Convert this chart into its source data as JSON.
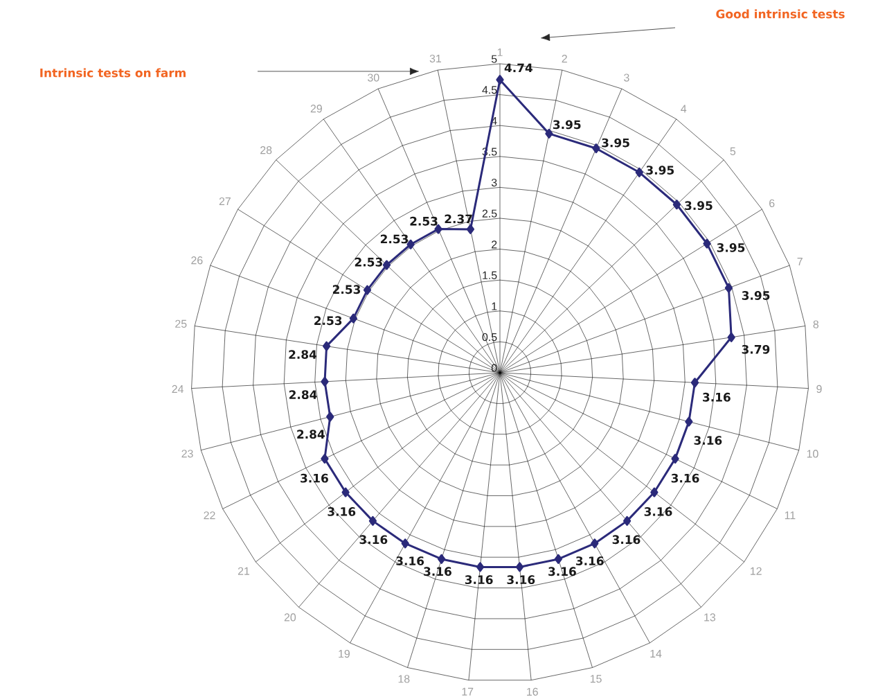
{
  "chart_data": {
    "type": "radar",
    "categories": [
      "1",
      "2",
      "3",
      "4",
      "5",
      "6",
      "7",
      "8",
      "9",
      "10",
      "11",
      "12",
      "13",
      "14",
      "15",
      "16",
      "17",
      "18",
      "19",
      "20",
      "21",
      "22",
      "23",
      "24",
      "25",
      "26",
      "27",
      "28",
      "29",
      "30",
      "31"
    ],
    "series": [
      {
        "color": "#2b2a7a",
        "values": [
          4.74,
          3.95,
          3.95,
          3.95,
          3.95,
          3.95,
          3.95,
          3.79,
          3.16,
          3.16,
          3.16,
          3.16,
          3.16,
          3.16,
          3.16,
          3.16,
          3.16,
          3.16,
          3.16,
          3.16,
          3.16,
          3.16,
          2.84,
          2.84,
          2.84,
          2.53,
          2.53,
          2.53,
          2.53,
          2.53,
          2.37
        ]
      }
    ],
    "ylim": [
      0,
      5
    ],
    "yticks": [
      0,
      0.5,
      1,
      1.5,
      2,
      2.5,
      3,
      3.5,
      4,
      4.5,
      5
    ],
    "grid": true,
    "marker": "diamond",
    "line_style": "solid",
    "data_labels": true,
    "annotations": [
      "Good intrinsic tests",
      "Intrinsic tests on farm"
    ]
  }
}
